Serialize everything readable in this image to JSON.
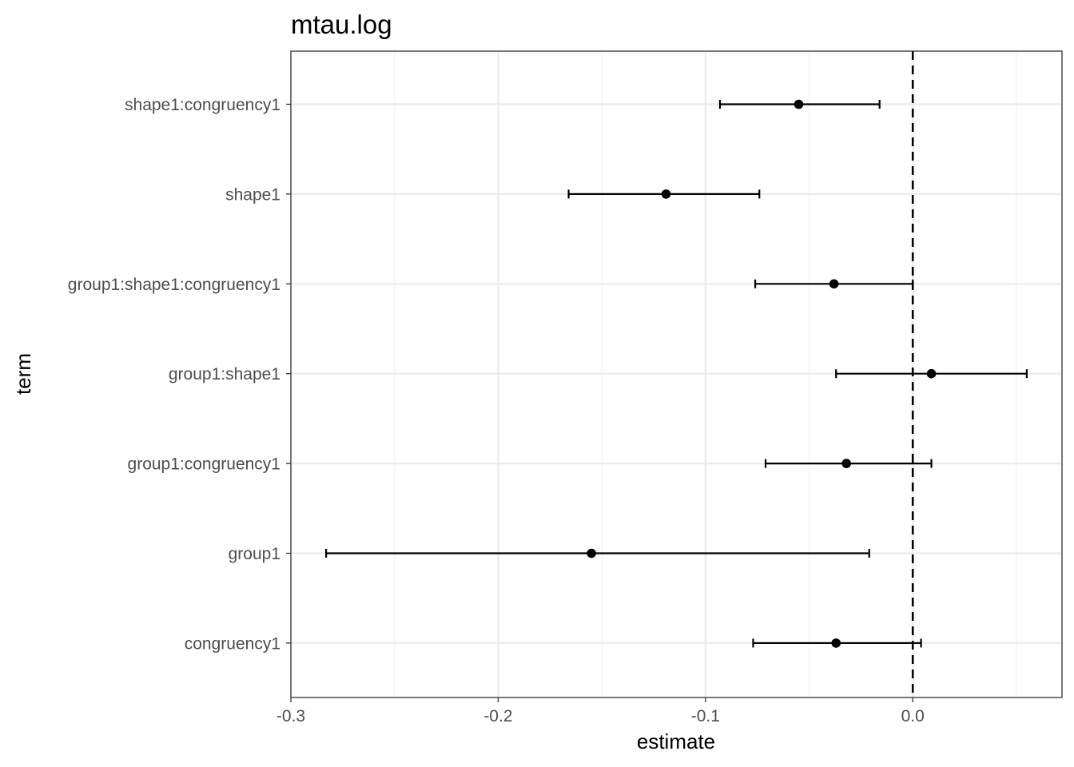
{
  "chart_data": {
    "type": "scatter",
    "subtype": "coefficient-plot-with-error-bars",
    "title": "mtau.log",
    "xlabel": "estimate",
    "ylabel": "term",
    "xlim": [
      -0.3,
      0.072
    ],
    "x_ticks": [
      -0.3,
      -0.2,
      -0.1,
      0.0
    ],
    "x_tick_labels": [
      "-0.3",
      "-0.2",
      "-0.1",
      "0.0"
    ],
    "reference_line": {
      "x": 0.0,
      "style": "dashed"
    },
    "grid": true,
    "terms": [
      "shape1:congruency1",
      "shape1",
      "group1:shape1:congruency1",
      "group1:shape1",
      "group1:congruency1",
      "group1",
      "congruency1"
    ],
    "estimates": [
      -0.055,
      -0.119,
      -0.038,
      0.009,
      -0.032,
      -0.155,
      -0.037
    ],
    "lower": [
      -0.093,
      -0.166,
      -0.076,
      -0.037,
      -0.071,
      -0.283,
      -0.077
    ],
    "upper": [
      -0.016,
      -0.074,
      0.0,
      0.055,
      0.009,
      -0.021,
      0.004
    ]
  }
}
